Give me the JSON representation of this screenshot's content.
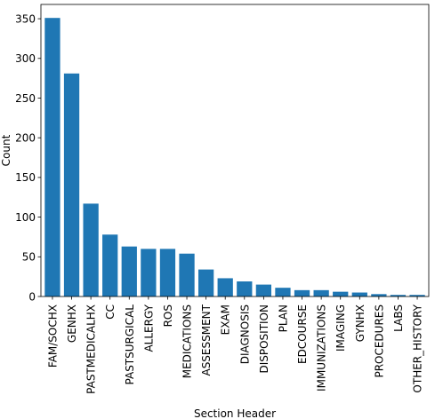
{
  "chart_data": {
    "type": "bar",
    "title": "",
    "xlabel": "Section Header",
    "ylabel": "Count",
    "categories": [
      "FAM/SOCHX",
      "GENHX",
      "PASTMEDICALHX",
      "CC",
      "PASTSURGICAL",
      "ALLERGY",
      "ROS",
      "MEDICATIONS",
      "ASSESSMENT",
      "EXAM",
      "DIAGNOSIS",
      "DISPOSITION",
      "PLAN",
      "EDCOURSE",
      "IMMUNIZATIONS",
      "IMAGING",
      "GYNHX",
      "PROCEDURES",
      "LABS",
      "OTHER_HISTORY"
    ],
    "values": [
      351,
      281,
      117,
      78,
      63,
      60,
      60,
      54,
      34,
      23,
      19,
      15,
      11,
      8,
      8,
      6,
      5,
      3,
      2,
      2
    ],
    "ylim": [
      0,
      368
    ],
    "yticks": [
      0,
      50,
      100,
      150,
      200,
      250,
      300,
      350
    ],
    "bar_color": "#1f77b4",
    "grid": false,
    "legend": "none"
  }
}
